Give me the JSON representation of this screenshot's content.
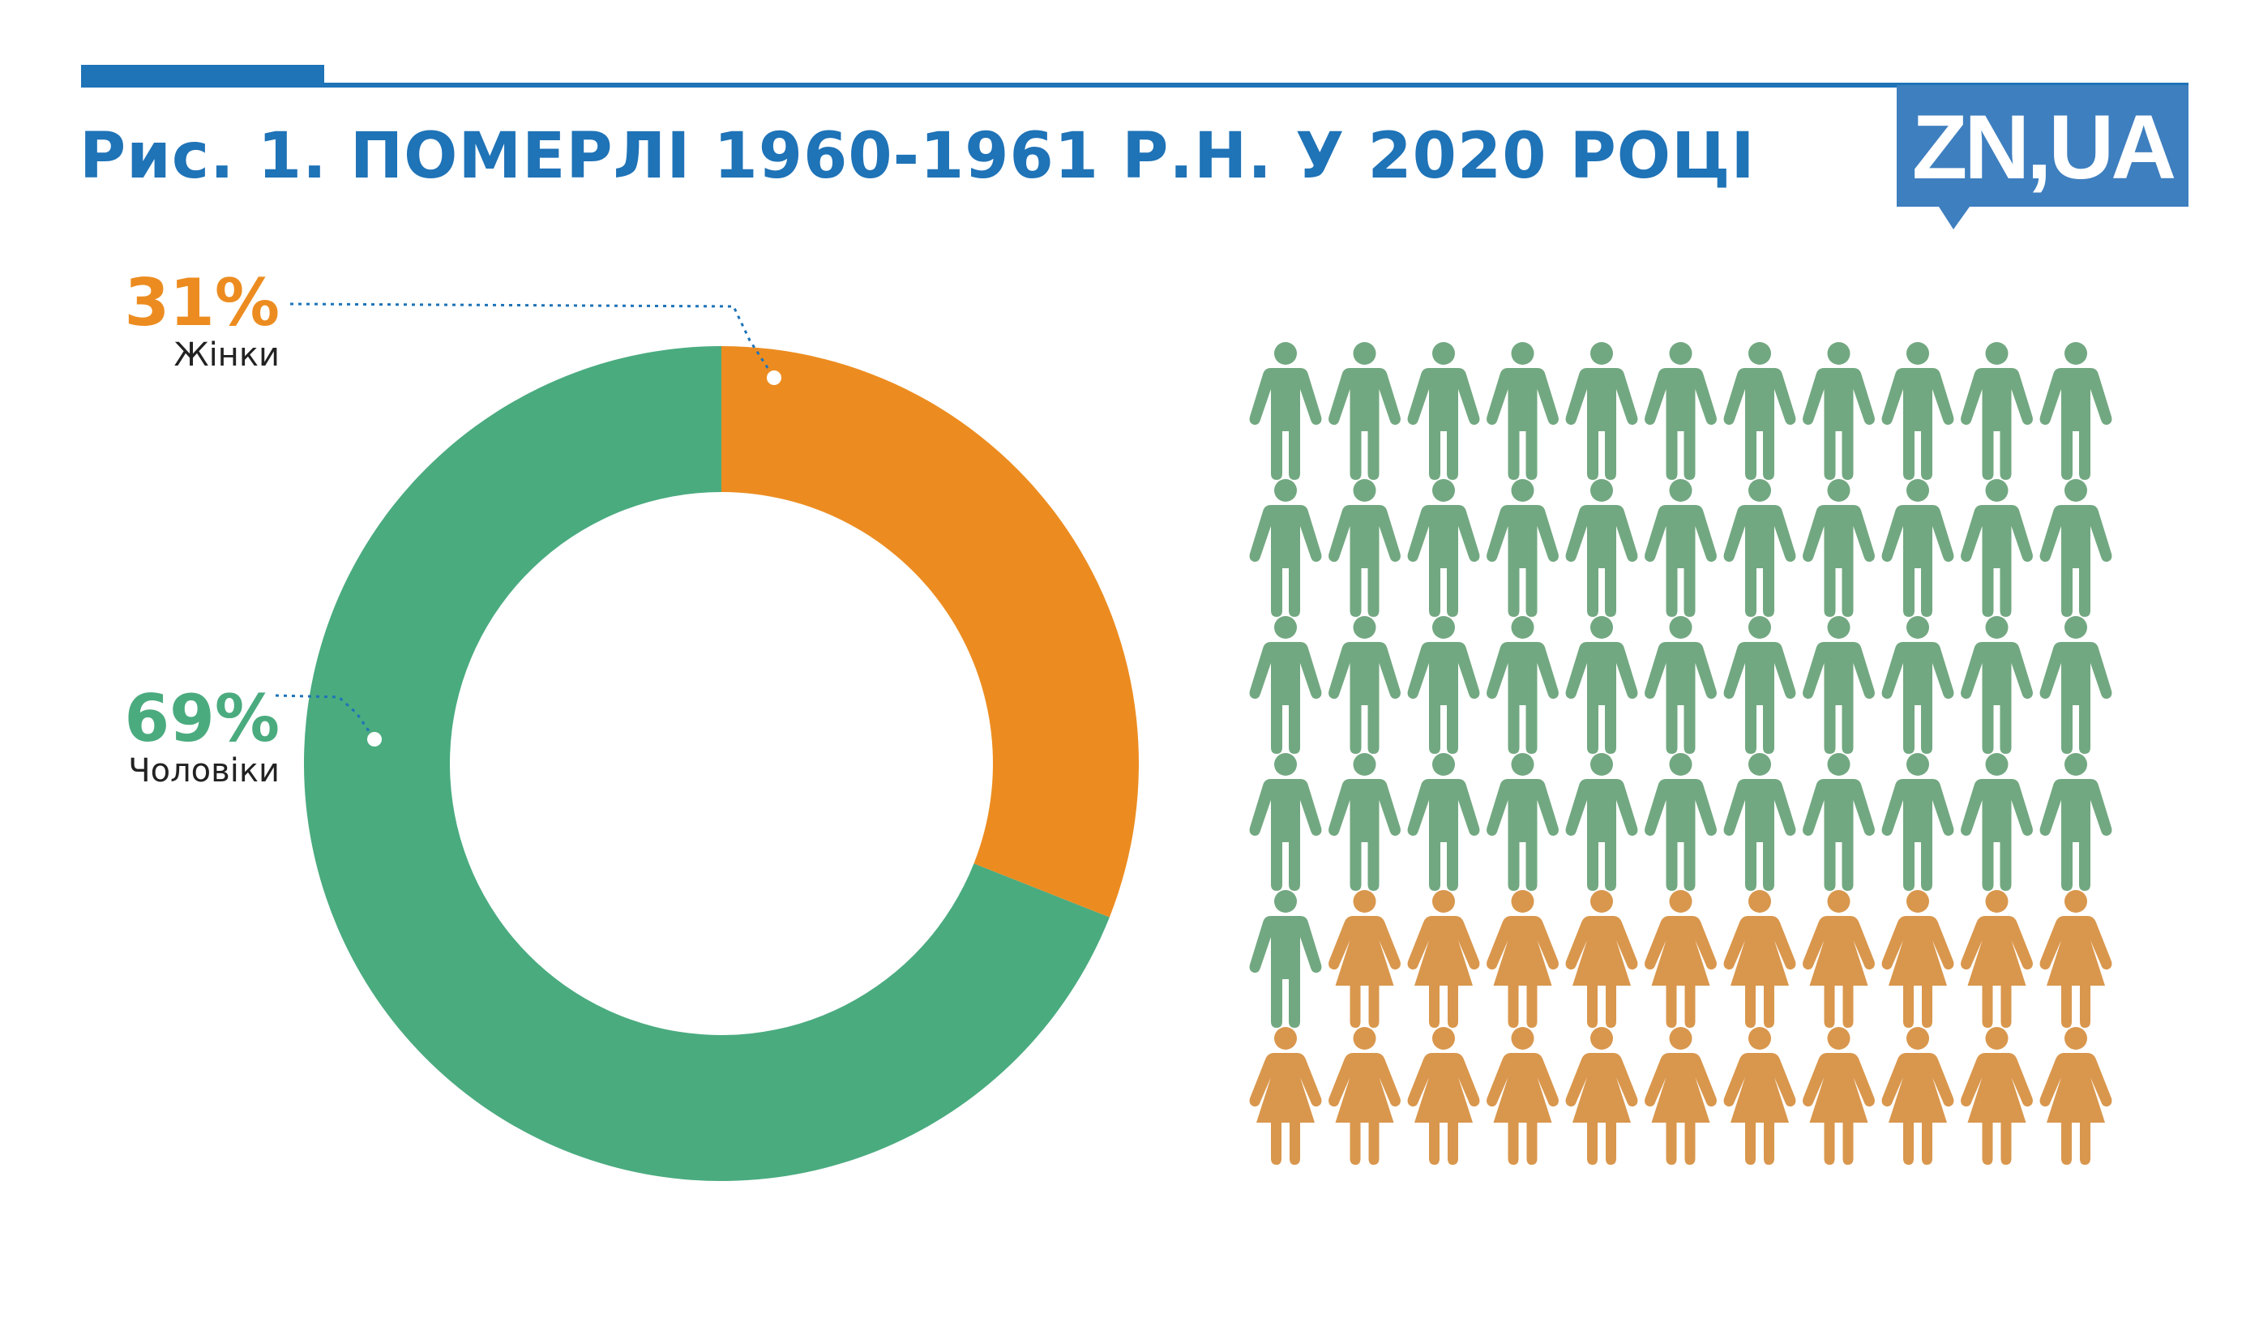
{
  "title": "Рис. 1. ПОМЕРЛІ 1960-1961 Р.Н. У 2020 РОЦІ",
  "logo_text": "ZN,UA",
  "colors": {
    "accent": "#1f73b7",
    "women": "#ec8c20",
    "men": "#4aab7f",
    "women_icon": "#d9974d",
    "men_icon": "#72a881"
  },
  "chart_data": {
    "type": "pie",
    "donut": true,
    "slices": [
      {
        "label": "Жінки",
        "value": 31,
        "value_label": "31%"
      },
      {
        "label": "Чоловіки",
        "value": 69,
        "value_label": "69%"
      }
    ],
    "pictogram": {
      "columns": 11,
      "rows": 6,
      "men_icons": 45,
      "women_icons": 21
    }
  }
}
